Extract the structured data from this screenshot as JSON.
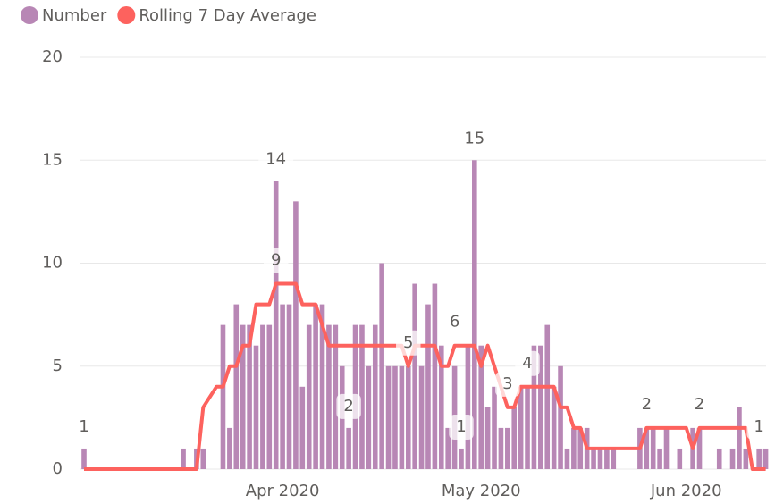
{
  "chart_data": {
    "type": "combo",
    "categories": [
      null,
      null,
      null,
      null,
      null,
      null,
      null,
      null,
      null,
      null,
      null,
      null,
      null,
      null,
      null,
      null,
      null,
      null,
      null,
      null,
      null,
      null,
      null,
      null,
      null,
      null,
      null,
      null,
      null,
      null,
      "Apr 2020",
      null,
      null,
      null,
      null,
      null,
      null,
      null,
      null,
      null,
      null,
      null,
      null,
      null,
      null,
      null,
      null,
      null,
      null,
      null,
      null,
      null,
      null,
      null,
      null,
      null,
      null,
      null,
      null,
      null,
      "May 2020",
      null,
      null,
      null,
      null,
      null,
      null,
      null,
      null,
      null,
      null,
      null,
      null,
      null,
      null,
      null,
      null,
      null,
      null,
      null,
      null,
      null,
      null,
      null,
      null,
      null,
      null,
      null,
      null,
      null,
      null,
      "Jun 2020",
      null,
      null,
      null,
      null,
      null,
      null,
      null,
      null,
      null,
      null,
      null,
      null
    ],
    "series": [
      {
        "name": "Number",
        "type": "bar",
        "color": "#b887b5",
        "values": [
          1,
          0,
          0,
          0,
          0,
          0,
          0,
          0,
          0,
          0,
          0,
          0,
          0,
          0,
          0,
          1,
          0,
          1,
          1,
          0,
          0,
          7,
          2,
          8,
          7,
          7,
          6,
          7,
          7,
          14,
          8,
          8,
          13,
          4,
          7,
          8,
          8,
          7,
          7,
          5,
          2,
          7,
          7,
          5,
          7,
          10,
          5,
          5,
          5,
          5,
          9,
          5,
          8,
          9,
          6,
          2,
          5,
          1,
          6,
          15,
          6,
          3,
          4,
          2,
          2,
          3,
          4,
          4,
          6,
          6,
          7,
          4,
          5,
          1,
          2,
          2,
          2,
          1,
          1,
          1,
          1,
          0,
          0,
          0,
          2,
          2,
          2,
          1,
          2,
          0,
          1,
          0,
          2,
          2,
          0,
          0,
          1,
          0,
          1,
          3,
          1,
          0,
          1,
          1
        ],
        "value_labels": [
          "1",
          null,
          null,
          null,
          null,
          null,
          null,
          null,
          null,
          null,
          null,
          null,
          null,
          null,
          null,
          null,
          null,
          null,
          null,
          null,
          null,
          null,
          null,
          null,
          null,
          null,
          null,
          null,
          null,
          "14",
          null,
          null,
          null,
          null,
          null,
          null,
          null,
          null,
          null,
          null,
          "2",
          null,
          null,
          null,
          null,
          null,
          null,
          null,
          null,
          null,
          null,
          null,
          null,
          null,
          null,
          null,
          null,
          "1",
          null,
          "15",
          null,
          null,
          null,
          null,
          null,
          null,
          null,
          null,
          null,
          null,
          null,
          null,
          null,
          null,
          null,
          null,
          null,
          null,
          null,
          null,
          null,
          null,
          null,
          null,
          null,
          null,
          null,
          null,
          null,
          null,
          null,
          null,
          null,
          null,
          null,
          null,
          null,
          null,
          null,
          null,
          null,
          null,
          "1",
          null
        ]
      },
      {
        "name": "Rolling 7 Day Average",
        "type": "line",
        "color": "#fd625e",
        "values": [
          0,
          0,
          0,
          0,
          0,
          0,
          0,
          0,
          0,
          0,
          0,
          0,
          0,
          0,
          0,
          0,
          0,
          0,
          3,
          3.5,
          4,
          4,
          5,
          5,
          6,
          6,
          8,
          8,
          8,
          9,
          9,
          9,
          9,
          8,
          8,
          8,
          7,
          6,
          6,
          6,
          6,
          6,
          6,
          6,
          6,
          6,
          6,
          6,
          6,
          5,
          6,
          6,
          6,
          6,
          5,
          5,
          6,
          6,
          6,
          6,
          5,
          6,
          5,
          4,
          3,
          3,
          4,
          4,
          4,
          4,
          4,
          4,
          3,
          3,
          2,
          2,
          1,
          1,
          1,
          1,
          1,
          1,
          1,
          1,
          1,
          2,
          2,
          2,
          2,
          2,
          2,
          2,
          1,
          2,
          2,
          2,
          2,
          2,
          2,
          2,
          2,
          0,
          0,
          0
        ],
        "value_labels": [
          null,
          null,
          null,
          null,
          null,
          null,
          null,
          null,
          null,
          null,
          null,
          null,
          null,
          null,
          null,
          null,
          null,
          null,
          null,
          null,
          null,
          null,
          null,
          null,
          null,
          null,
          null,
          null,
          null,
          "9",
          null,
          null,
          null,
          null,
          null,
          null,
          null,
          null,
          null,
          null,
          null,
          null,
          null,
          null,
          null,
          null,
          null,
          null,
          null,
          "5",
          null,
          null,
          null,
          null,
          null,
          null,
          "6",
          null,
          null,
          null,
          null,
          null,
          null,
          null,
          "3",
          null,
          null,
          "4",
          null,
          null,
          null,
          null,
          null,
          null,
          null,
          null,
          null,
          null,
          null,
          null,
          null,
          null,
          null,
          null,
          null,
          "2",
          null,
          null,
          null,
          null,
          null,
          null,
          null,
          "2",
          null,
          null,
          null,
          null,
          null,
          null,
          null,
          null,
          null,
          null
        ]
      }
    ],
    "ylim": [
      0,
      20
    ],
    "yticks": [
      0,
      5,
      10,
      15,
      20
    ],
    "grid": true,
    "legend": "top-left"
  }
}
